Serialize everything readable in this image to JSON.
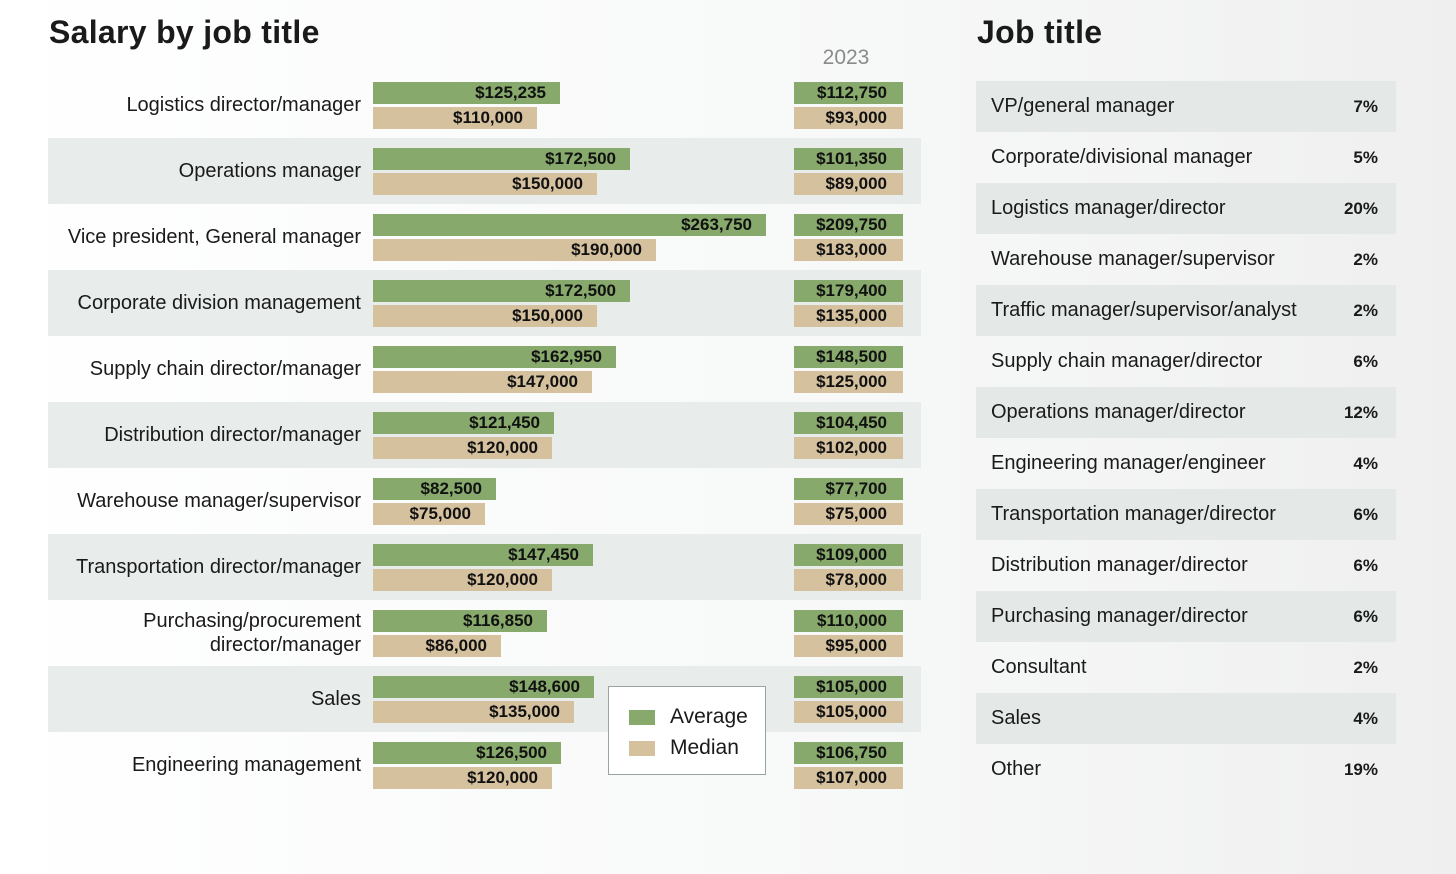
{
  "chart_data": {
    "type": "bar",
    "title": "Salary by job title",
    "legend": [
      "Average",
      "Median"
    ],
    "legend_placement": "bottom-center",
    "comparison_year": "2023",
    "categories": [
      "Logistics director/manager",
      "Operations manager",
      "Vice president, General manager",
      "Corporate division management",
      "Supply chain director/manager",
      "Distribution director/manager",
      "Warehouse manager/supervisor",
      "Transportation director/manager",
      "Purchasing/procurement\ndirector/manager",
      "Sales",
      "Engineering management"
    ],
    "series": [
      {
        "name": "Average",
        "values": [
          125235,
          172500,
          263750,
          172500,
          162950,
          121450,
          82500,
          147450,
          116850,
          148600,
          126500
        ],
        "labels": [
          "$125,235",
          "$172,500",
          "$263,750",
          "$172,500",
          "$162,950",
          "$121,450",
          "$82,500",
          "$147,450",
          "$116,850",
          "$148,600",
          "$126,500"
        ]
      },
      {
        "name": "Median",
        "values": [
          110000,
          150000,
          190000,
          150000,
          147000,
          120000,
          75000,
          120000,
          86000,
          135000,
          120000
        ],
        "labels": [
          "$110,000",
          "$150,000",
          "$190,000",
          "$150,000",
          "$147,000",
          "$120,000",
          "$75,000",
          "$120,000",
          "$86,000",
          "$135,000",
          "$120,000"
        ]
      }
    ],
    "series_2023": [
      {
        "name": "Average",
        "labels": [
          "$112,750",
          "$101,350",
          "$209,750",
          "$179,400",
          "$148,500",
          "$104,450",
          "$77,700",
          "$109,000",
          "$110,000",
          "$105,000",
          "$106,750"
        ]
      },
      {
        "name": "Median",
        "labels": [
          "$93,000",
          "$89,000",
          "$183,000",
          "$135,000",
          "$125,000",
          "$102,000",
          "$75,000",
          "$78,000",
          "$95,000",
          "$105,000",
          "$107,000"
        ]
      }
    ],
    "colors": {
      "average": "#87a96b",
      "median": "#d6c19f",
      "row_shade": "#e8edec"
    }
  },
  "job_title": {
    "title": "Job title",
    "items": [
      {
        "label": "VP/general manager",
        "pct": "7%"
      },
      {
        "label": "Corporate/divisional manager",
        "pct": "5%"
      },
      {
        "label": "Logistics manager/director",
        "pct": "20%"
      },
      {
        "label": "Warehouse manager/supervisor",
        "pct": "2%"
      },
      {
        "label": "Traffic manager/supervisor/analyst",
        "pct": "2%"
      },
      {
        "label": "Supply chain manager/director",
        "pct": "6%"
      },
      {
        "label": "Operations manager/director",
        "pct": "12%"
      },
      {
        "label": "Engineering manager/engineer",
        "pct": "4%"
      },
      {
        "label": "Transportation manager/director",
        "pct": "6%"
      },
      {
        "label": "Distribution manager/director",
        "pct": "6%"
      },
      {
        "label": "Purchasing manager/director",
        "pct": "6%"
      },
      {
        "label": "Consultant",
        "pct": "2%"
      },
      {
        "label": "Sales",
        "pct": "4%"
      },
      {
        "label": "Other",
        "pct": "19%"
      }
    ]
  }
}
